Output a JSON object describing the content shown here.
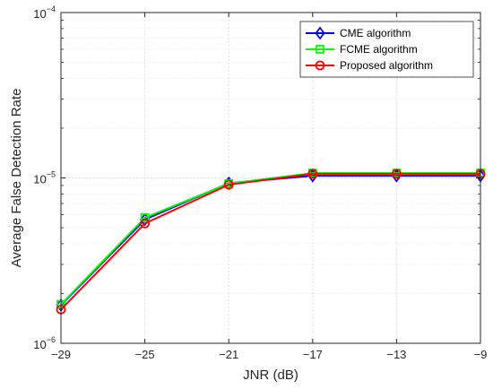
{
  "chart_data": {
    "type": "line",
    "xlabel": "JNR (dB)",
    "ylabel": "Average False Detection Rate",
    "x": [
      -29,
      -25,
      -21,
      -17,
      -13,
      -9
    ],
    "xlim": [
      -29,
      -9
    ],
    "x_tick_labels": [
      "−29",
      "−25",
      "−21",
      "−17",
      "−13",
      "−9"
    ],
    "y_scale": "log",
    "ylim": [
      1e-06,
      0.0001
    ],
    "y_ticks": [
      {
        "value": 0.0001,
        "base": "10",
        "exp": "−4"
      },
      {
        "value": 1e-05,
        "base": "10",
        "exp": "−5"
      },
      {
        "value": 1e-06,
        "base": "10",
        "exp": "−6"
      }
    ],
    "grid": true,
    "legend_position": "top-right",
    "series": [
      {
        "name": "CME algorithm",
        "color": "#0000ff",
        "marker": "diamond",
        "values": [
          1.7e-06,
          5.6e-06,
          9.3e-06,
          1.03e-05,
          1.03e-05,
          1.03e-05
        ]
      },
      {
        "name": "FCME algorithm",
        "color": "#00ff00",
        "marker": "square",
        "values": [
          1.72e-06,
          5.75e-06,
          9.25e-06,
          1.07e-05,
          1.07e-05,
          1.07e-05
        ]
      },
      {
        "name": "Proposed algorithm",
        "color": "#ff0000",
        "marker": "circle",
        "values": [
          1.6e-06,
          5.3e-06,
          9.1e-06,
          1.06e-05,
          1.06e-05,
          1.06e-05
        ]
      }
    ]
  }
}
